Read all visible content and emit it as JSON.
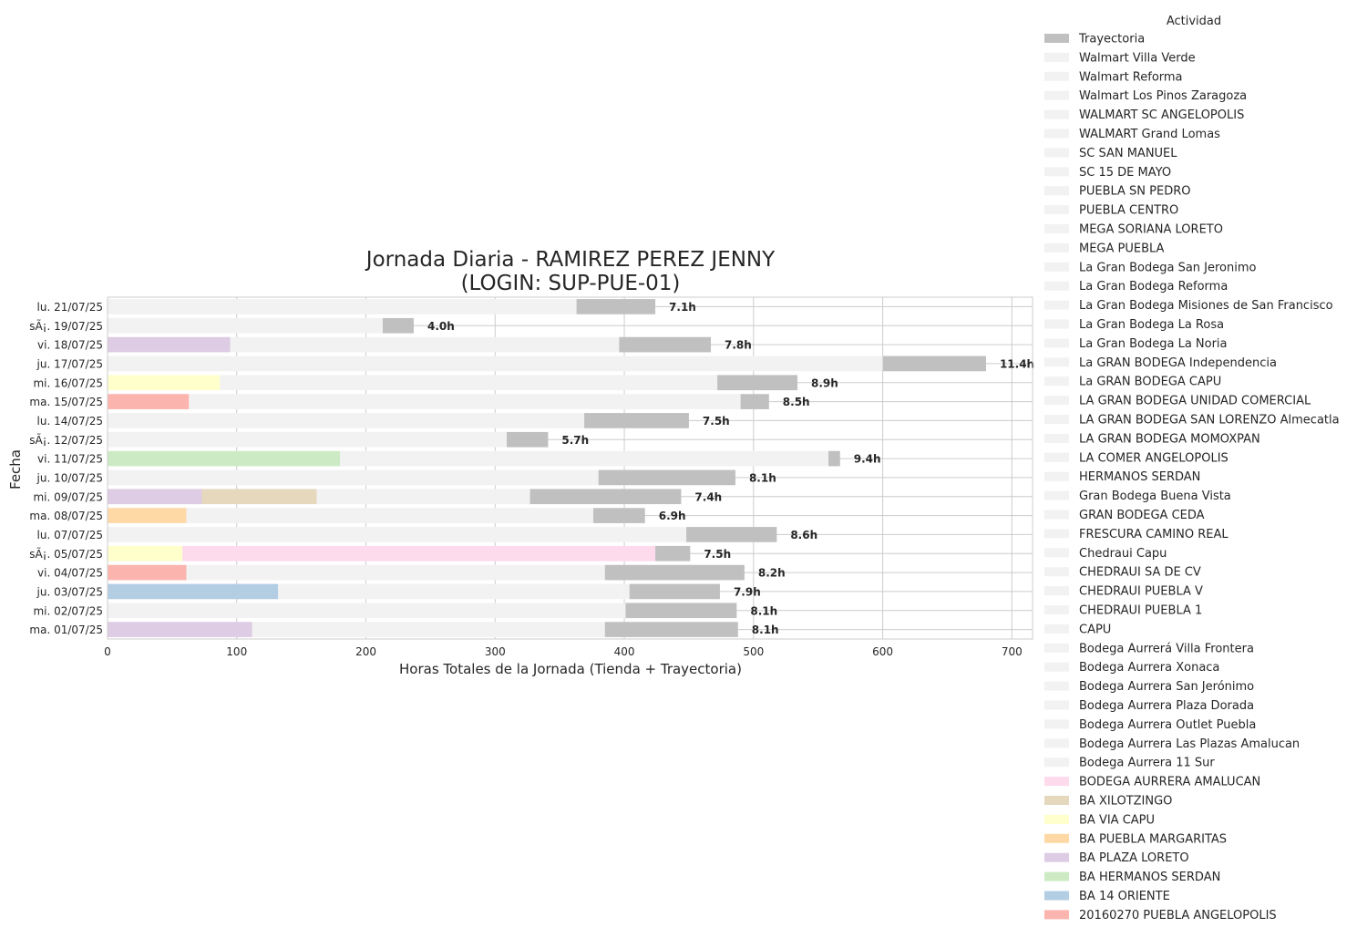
{
  "chart_data": {
    "type": "bar",
    "orientation": "horizontal",
    "stacked": true,
    "title_line1": "Jornada Diaria - RAMIREZ PEREZ JENNY",
    "title_line2": "(LOGIN: SUP-PUE-01)",
    "xlabel": "Horas Totales de la Jornada (Tienda + Trayectoria)",
    "ylabel": "Fecha",
    "xlim": [
      0,
      716
    ],
    "xticks": [
      0,
      100,
      200,
      300,
      400,
      500,
      600,
      700
    ],
    "grid": true,
    "legend_title": "Actividad",
    "legend_position": "outside-right",
    "categories": [
      "lu. 21/07/25",
      "sÃ¡. 19/07/25",
      "vi. 18/07/25",
      "ju. 17/07/25",
      "mi. 16/07/25",
      "ma. 15/07/25",
      "lu. 14/07/25",
      "sÃ¡. 12/07/25",
      "vi. 11/07/25",
      "ju. 10/07/25",
      "mi. 09/07/25",
      "ma. 08/07/25",
      "lu. 07/07/25",
      "sÃ¡. 05/07/25",
      "vi. 04/07/25",
      "ju. 03/07/25",
      "mi. 02/07/25",
      "ma. 01/07/25"
    ],
    "rows": [
      {
        "segments": [
          {
            "series": "other",
            "value": 363
          },
          {
            "series": "Trayectoria",
            "value": 61
          }
        ],
        "label": "7.1h"
      },
      {
        "segments": [
          {
            "series": "other",
            "value": 213
          },
          {
            "series": "Trayectoria",
            "value": 24
          }
        ],
        "label": "4.0h"
      },
      {
        "segments": [
          {
            "series": "BA PLAZA LORETO",
            "value": 95
          },
          {
            "series": "other",
            "value": 301
          },
          {
            "series": "Trayectoria",
            "value": 71
          }
        ],
        "label": "7.8h"
      },
      {
        "segments": [
          {
            "series": "other",
            "value": 600
          },
          {
            "series": "Trayectoria",
            "value": 80
          }
        ],
        "label": "11.4h"
      },
      {
        "segments": [
          {
            "series": "BA VIA CAPU",
            "value": 87
          },
          {
            "series": "other",
            "value": 385
          },
          {
            "series": "Trayectoria",
            "value": 62
          }
        ],
        "label": "8.9h"
      },
      {
        "segments": [
          {
            "series": "20160270 PUEBLA ANGELOPOLIS",
            "value": 63
          },
          {
            "series": "other",
            "value": 427
          },
          {
            "series": "Trayectoria",
            "value": 22
          }
        ],
        "label": "8.5h"
      },
      {
        "segments": [
          {
            "series": "other",
            "value": 369
          },
          {
            "series": "Trayectoria",
            "value": 81
          }
        ],
        "label": "7.5h"
      },
      {
        "segments": [
          {
            "series": "other",
            "value": 309
          },
          {
            "series": "Trayectoria",
            "value": 32
          }
        ],
        "label": "5.7h"
      },
      {
        "segments": [
          {
            "series": "BA HERMANOS SERDAN",
            "value": 180
          },
          {
            "series": "other",
            "value": 378
          },
          {
            "series": "Trayectoria",
            "value": 9
          }
        ],
        "label": "9.4h"
      },
      {
        "segments": [
          {
            "series": "other",
            "value": 380
          },
          {
            "series": "Trayectoria",
            "value": 106
          }
        ],
        "label": "8.1h"
      },
      {
        "segments": [
          {
            "series": "BA PLAZA LORETO",
            "value": 73
          },
          {
            "series": "BA XILOTZINGO",
            "value": 89
          },
          {
            "series": "other",
            "value": 165
          },
          {
            "series": "Trayectoria",
            "value": 117
          }
        ],
        "label": "7.4h"
      },
      {
        "segments": [
          {
            "series": "BA PUEBLA MARGARITAS",
            "value": 61
          },
          {
            "series": "other",
            "value": 315
          },
          {
            "series": "Trayectoria",
            "value": 40
          }
        ],
        "label": "6.9h"
      },
      {
        "segments": [
          {
            "series": "other",
            "value": 448
          },
          {
            "series": "Trayectoria",
            "value": 70
          }
        ],
        "label": "8.6h"
      },
      {
        "segments": [
          {
            "series": "BA VIA CAPU",
            "value": 58
          },
          {
            "series": "BODEGA AURRERA AMALUCAN",
            "value": 366
          },
          {
            "series": "Trayectoria",
            "value": 27
          }
        ],
        "label": "7.5h"
      },
      {
        "segments": [
          {
            "series": "20160270 PUEBLA ANGELOPOLIS",
            "value": 61
          },
          {
            "series": "other",
            "value": 324
          },
          {
            "series": "Trayectoria",
            "value": 108
          }
        ],
        "label": "8.2h"
      },
      {
        "segments": [
          {
            "series": "BA 14 ORIENTE",
            "value": 132
          },
          {
            "series": "other",
            "value": 272
          },
          {
            "series": "Trayectoria",
            "value": 70
          }
        ],
        "label": "7.9h"
      },
      {
        "segments": [
          {
            "series": "other",
            "value": 401
          },
          {
            "series": "Trayectoria",
            "value": 86
          }
        ],
        "label": "8.1h"
      },
      {
        "segments": [
          {
            "series": "BA PLAZA LORETO",
            "value": 112
          },
          {
            "series": "other",
            "value": 273
          },
          {
            "series": "Trayectoria",
            "value": 103
          }
        ],
        "label": "8.1h"
      }
    ],
    "legend": [
      {
        "name": "Trayectoria",
        "color": "#c0c0c0"
      },
      {
        "name": "Walmart Villa Verde",
        "color": "#f2f2f2"
      },
      {
        "name": "Walmart Reforma",
        "color": "#f2f2f2"
      },
      {
        "name": "Walmart Los Pinos Zaragoza",
        "color": "#f2f2f2"
      },
      {
        "name": "WALMART SC ANGELOPOLIS",
        "color": "#f2f2f2"
      },
      {
        "name": "WALMART Grand Lomas",
        "color": "#f2f2f2"
      },
      {
        "name": "SC SAN MANUEL",
        "color": "#f2f2f2"
      },
      {
        "name": "SC 15 DE MAYO",
        "color": "#f2f2f2"
      },
      {
        "name": "PUEBLA SN PEDRO",
        "color": "#f2f2f2"
      },
      {
        "name": "PUEBLA CENTRO",
        "color": "#f2f2f2"
      },
      {
        "name": "MEGA SORIANA LORETO",
        "color": "#f2f2f2"
      },
      {
        "name": "MEGA PUEBLA",
        "color": "#f2f2f2"
      },
      {
        "name": "La Gran Bodega San Jeronimo",
        "color": "#f2f2f2"
      },
      {
        "name": "La Gran Bodega Reforma",
        "color": "#f2f2f2"
      },
      {
        "name": "La Gran Bodega Misiones de San Francisco",
        "color": "#f2f2f2"
      },
      {
        "name": "La Gran Bodega La Rosa",
        "color": "#f2f2f2"
      },
      {
        "name": "La Gran Bodega La Noria",
        "color": "#f2f2f2"
      },
      {
        "name": "La GRAN BODEGA Independencia",
        "color": "#f2f2f2"
      },
      {
        "name": "La GRAN BODEGA CAPU",
        "color": "#f2f2f2"
      },
      {
        "name": "LA GRAN BODEGA UNIDAD COMERCIAL",
        "color": "#f2f2f2"
      },
      {
        "name": "LA GRAN BODEGA SAN LORENZO Almecatla",
        "color": "#f2f2f2"
      },
      {
        "name": "LA GRAN BODEGA MOMOXPAN",
        "color": "#f2f2f2"
      },
      {
        "name": "LA COMER ANGELOPOLIS",
        "color": "#f2f2f2"
      },
      {
        "name": "HERMANOS SERDAN",
        "color": "#f2f2f2"
      },
      {
        "name": "Gran Bodega Buena Vista",
        "color": "#f2f2f2"
      },
      {
        "name": "GRAN BODEGA CEDA",
        "color": "#f2f2f2"
      },
      {
        "name": "FRESCURA CAMINO REAL",
        "color": "#f2f2f2"
      },
      {
        "name": "Chedraui Capu",
        "color": "#f2f2f2"
      },
      {
        "name": "CHEDRAUI SA DE CV",
        "color": "#f2f2f2"
      },
      {
        "name": "CHEDRAUI PUEBLA V",
        "color": "#f2f2f2"
      },
      {
        "name": "CHEDRAUI PUEBLA 1",
        "color": "#f2f2f2"
      },
      {
        "name": "CAPU",
        "color": "#f2f2f2"
      },
      {
        "name": "Bodega Aurrerá Villa Frontera",
        "color": "#f2f2f2"
      },
      {
        "name": "Bodega Aurrera Xonaca",
        "color": "#f2f2f2"
      },
      {
        "name": "Bodega Aurrera San Jerónimo",
        "color": "#f2f2f2"
      },
      {
        "name": "Bodega Aurrera Plaza Dorada",
        "color": "#f2f2f2"
      },
      {
        "name": "Bodega Aurrera Outlet Puebla",
        "color": "#f2f2f2"
      },
      {
        "name": "Bodega Aurrera Las Plazas Amalucan",
        "color": "#f2f2f2"
      },
      {
        "name": "Bodega Aurrera 11 Sur",
        "color": "#f2f2f2"
      },
      {
        "name": "BODEGA AURRERA AMALUCAN",
        "color": "#fddaec"
      },
      {
        "name": "BA XILOTZINGO",
        "color": "#e5d8bd"
      },
      {
        "name": "BA VIA CAPU",
        "color": "#ffffcc"
      },
      {
        "name": "BA PUEBLA MARGARITAS",
        "color": "#fed9a6"
      },
      {
        "name": "BA PLAZA LORETO",
        "color": "#decbe4"
      },
      {
        "name": "BA HERMANOS SERDAN",
        "color": "#ccebc5"
      },
      {
        "name": "BA 14 ORIENTE",
        "color": "#b3cde3"
      },
      {
        "name": "20160270 PUEBLA ANGELOPOLIS",
        "color": "#fbb4ae"
      }
    ],
    "other_color": "#f2f2f2"
  }
}
